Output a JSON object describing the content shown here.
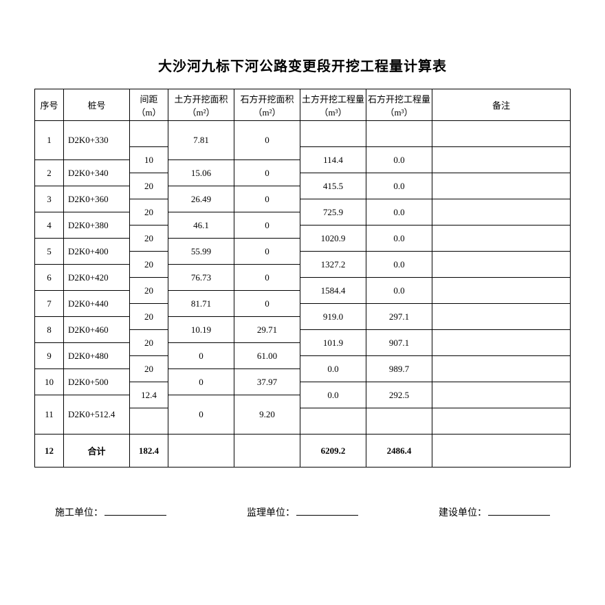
{
  "title": "大沙河九标下河公路变更段开挖工程量计算表",
  "headers": {
    "seq": "序号",
    "pile": "桩号",
    "dist": "间距（m）",
    "area1": "土方开挖面积（m²）",
    "area2": "石方开挖面积（m²）",
    "vol1": "土方开挖工程量（m³）",
    "vol2": "石方开挖工程量（m³）",
    "note": "备注"
  },
  "rows": [
    {
      "seq": "1",
      "pile": "D2K0+330",
      "area1": "7.81",
      "area2": "0"
    },
    {
      "seq": "2",
      "pile": "D2K0+340",
      "area1": "15.06",
      "area2": "0"
    },
    {
      "seq": "3",
      "pile": "D2K0+360",
      "area1": "26.49",
      "area2": "0"
    },
    {
      "seq": "4",
      "pile": "D2K0+380",
      "area1": "46.1",
      "area2": "0"
    },
    {
      "seq": "5",
      "pile": "D2K0+400",
      "area1": "55.99",
      "area2": "0"
    },
    {
      "seq": "6",
      "pile": "D2K0+420",
      "area1": "76.73",
      "area2": "0"
    },
    {
      "seq": "7",
      "pile": "D2K0+440",
      "area1": "81.71",
      "area2": "0"
    },
    {
      "seq": "8",
      "pile": "D2K0+460",
      "area1": "10.19",
      "area2": "29.71"
    },
    {
      "seq": "9",
      "pile": "D2K0+480",
      "area1": "0",
      "area2": "61.00"
    },
    {
      "seq": "10",
      "pile": "D2K0+500",
      "area1": "0",
      "area2": "37.97"
    },
    {
      "seq": "11",
      "pile": "D2K0+512.4",
      "area1": "0",
      "area2": "9.20"
    }
  ],
  "between": [
    {
      "dist": "10",
      "vol1": "114.4",
      "vol2": "0.0"
    },
    {
      "dist": "20",
      "vol1": "415.5",
      "vol2": "0.0"
    },
    {
      "dist": "20",
      "vol1": "725.9",
      "vol2": "0.0"
    },
    {
      "dist": "20",
      "vol1": "1020.9",
      "vol2": "0.0"
    },
    {
      "dist": "20",
      "vol1": "1327.2",
      "vol2": "0.0"
    },
    {
      "dist": "20",
      "vol1": "1584.4",
      "vol2": "0.0"
    },
    {
      "dist": "20",
      "vol1": "919.0",
      "vol2": "297.1"
    },
    {
      "dist": "20",
      "vol1": "101.9",
      "vol2": "907.1"
    },
    {
      "dist": "20",
      "vol1": "0.0",
      "vol2": "989.7"
    },
    {
      "dist": "12.4",
      "vol1": "0.0",
      "vol2": "292.5"
    }
  ],
  "total": {
    "seq": "12",
    "label": "合计",
    "dist": "182.4",
    "vol1": "6209.2",
    "vol2": "2486.4"
  },
  "footer": {
    "construction": "施工单位：",
    "supervision": "监理单位：",
    "owner": "建设单位："
  }
}
